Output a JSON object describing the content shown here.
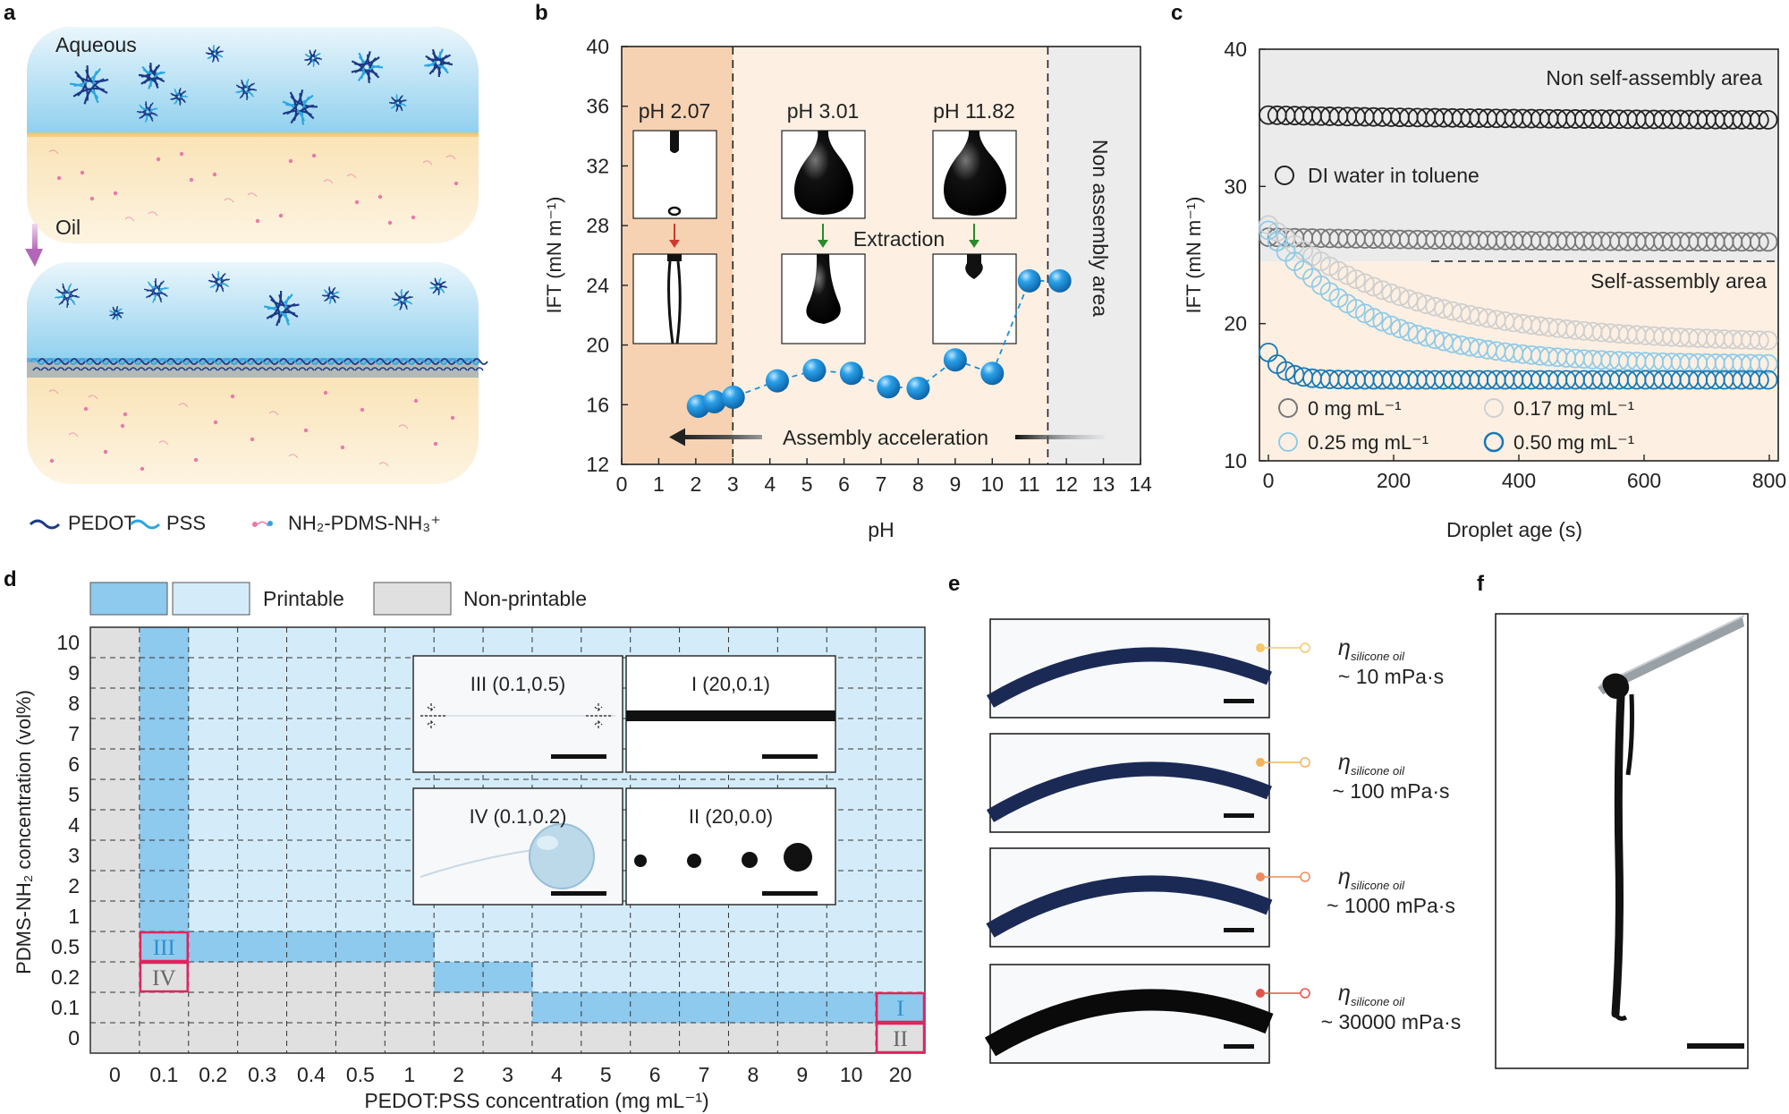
{
  "panel_labels": [
    "a",
    "b",
    "c",
    "d",
    "e",
    "f"
  ],
  "panel_a": {
    "aqueous_label": "Aqueous",
    "oil_label": "Oil",
    "legend": [
      {
        "label": "PEDOT",
        "color": "#1b3a86"
      },
      {
        "label": "PSS",
        "color": "#2ba6e0"
      },
      {
        "label": "NH₂-PDMS-NH₃⁺",
        "color": "#e77aa8"
      }
    ],
    "colors": {
      "aqueous": "#9fd6ef",
      "oil": "#f8d79a",
      "pedot": "#1b3a86",
      "pss": "#2ba6e0",
      "pdms": "#e77aa8",
      "arrow": "#c684c6"
    }
  },
  "panel_b": {
    "chart_data": {
      "type": "scatter",
      "xlabel": "pH",
      "ylabel": "IFT (mN m⁻¹)",
      "xlim": [
        0,
        14
      ],
      "ylim": [
        12,
        40
      ],
      "xticks": [
        "0",
        "1",
        "2",
        "3",
        "4",
        "5",
        "6",
        "7",
        "8",
        "9",
        "10",
        "11",
        "12",
        "13",
        "14"
      ],
      "yticks": [
        "12",
        "16",
        "20",
        "24",
        "28",
        "32",
        "36",
        "40"
      ],
      "x": [
        2.07,
        2.5,
        3.01,
        4.2,
        5.2,
        6.2,
        7.2,
        8.0,
        9.0,
        10.0,
        11.0,
        11.82
      ],
      "y": [
        15.9,
        16.2,
        16.5,
        17.6,
        18.3,
        18.1,
        17.2,
        17.1,
        19.0,
        18.1,
        24.3,
        24.3
      ],
      "regions": [
        {
          "from": 0,
          "to": 3,
          "color": "#f6d2b2"
        },
        {
          "from": 3,
          "to": 11.5,
          "color": "#fdf0e2"
        },
        {
          "from": 11.5,
          "to": 14,
          "color": "#ececec"
        }
      ],
      "vlines": [
        3,
        11.5
      ],
      "annotations": {
        "ph1": "pH 2.07",
        "ph2": "pH 3.01",
        "ph3": "pH 11.82",
        "extraction": "Extraction",
        "acceleration": "Assembly acceleration",
        "non_assembly": "Non assembly area"
      },
      "marker_color": "#1a8fd6"
    }
  },
  "panel_c": {
    "chart_data": {
      "type": "scatter",
      "xlabel": "Droplet age (s)",
      "ylabel": "IFT (mN m⁻¹)",
      "xlim": [
        0,
        800
      ],
      "ylim": [
        10,
        40
      ],
      "xticks": [
        "0",
        "200",
        "400",
        "600",
        "800"
      ],
      "yticks": [
        "10",
        "20",
        "30",
        "40"
      ],
      "series": [
        {
          "name": "DI water in toluene",
          "color": "#222222",
          "start": 35.2,
          "end": 34.8,
          "tau": 400
        },
        {
          "name": "0 mg mL⁻¹",
          "color": "#777777",
          "start": 26.3,
          "end": 25.9,
          "tau": 400
        },
        {
          "name": "0.17 mg mL⁻¹",
          "color": "#cfcfcf",
          "start": 27.2,
          "end": 18.5,
          "tau": 230
        },
        {
          "name": "0.25 mg mL⁻¹",
          "color": "#8fcbe8",
          "start": 26.8,
          "end": 17.0,
          "tau": 160
        },
        {
          "name": "0.50 mg mL⁻¹",
          "color": "#1678b6",
          "start": 17.9,
          "end": 15.9,
          "tau": 25
        }
      ],
      "boundary_y": 24.5,
      "regions": [
        {
          "from": 24.5,
          "to": 40,
          "color": "#ebebeb"
        },
        {
          "from": 10,
          "to": 24.5,
          "color": "#fdf0e2"
        }
      ],
      "annotations": {
        "non_self": "Non self-assembly area",
        "self": "Self-assembly area"
      }
    }
  },
  "panel_d": {
    "legend": [
      {
        "label": "Printable",
        "colors": [
          "#8ec9ee",
          "#d4ecfa"
        ]
      },
      {
        "label": "Non-printable",
        "colors": [
          "#e0e0e0"
        ]
      }
    ],
    "chart_data": {
      "type": "heatmap",
      "xlabel": "PEDOT:PSS concentration (mg mL⁻¹)",
      "ylabel": "PDMS-NH₂ concentration (vol%)",
      "x_categories": [
        "0",
        "0.1",
        "0.2",
        "0.3",
        "0.4",
        "0.5",
        "1",
        "2",
        "3",
        "4",
        "5",
        "6",
        "7",
        "8",
        "9",
        "10",
        "20"
      ],
      "y_categories": [
        "0",
        "0.1",
        "0.2",
        "0.5",
        "1",
        "2",
        "3",
        "4",
        "5",
        "6",
        "7",
        "8",
        "9",
        "10"
      ],
      "regions": {
        "printable_light": "#d4ecfa",
        "printable_dark": "#8ec9ee",
        "non_printable": "#e0e0e0"
      },
      "highlight_boxes": [
        {
          "label": "III",
          "x": "0.1",
          "y": "0.5",
          "color": "#2a90d0"
        },
        {
          "label": "IV",
          "x": "0.1",
          "y": "0.2",
          "color": "#666666"
        },
        {
          "label": "I",
          "x": "20",
          "y": "0.1",
          "color": "#2a90d0"
        },
        {
          "label": "II",
          "x": "20",
          "y": "0",
          "color": "#666666"
        }
      ]
    },
    "insets": [
      {
        "label": "III (0.1,0.5)",
        "color": "#2a90d0"
      },
      {
        "label": "I (20,0.1)",
        "color": "#2a90d0"
      },
      {
        "label": "IV (0.1,0.2)",
        "color": "#666666"
      },
      {
        "label": "II (20,0.0)",
        "color": "#666666"
      }
    ],
    "highlight_border": "#e0245e"
  },
  "panel_e": {
    "eta_symbol": "η",
    "eta_subscript": "silicone oil",
    "rows": [
      {
        "value": "~ 10 mPa·s",
        "dot": "#f5c86a"
      },
      {
        "value": "~ 100 mPa·s",
        "dot": "#f3b35a"
      },
      {
        "value": "~ 1000 mPa·s",
        "dot": "#ef8a5c"
      },
      {
        "value": "~ 30000 mPa·s",
        "dot": "#e2544a"
      }
    ]
  }
}
